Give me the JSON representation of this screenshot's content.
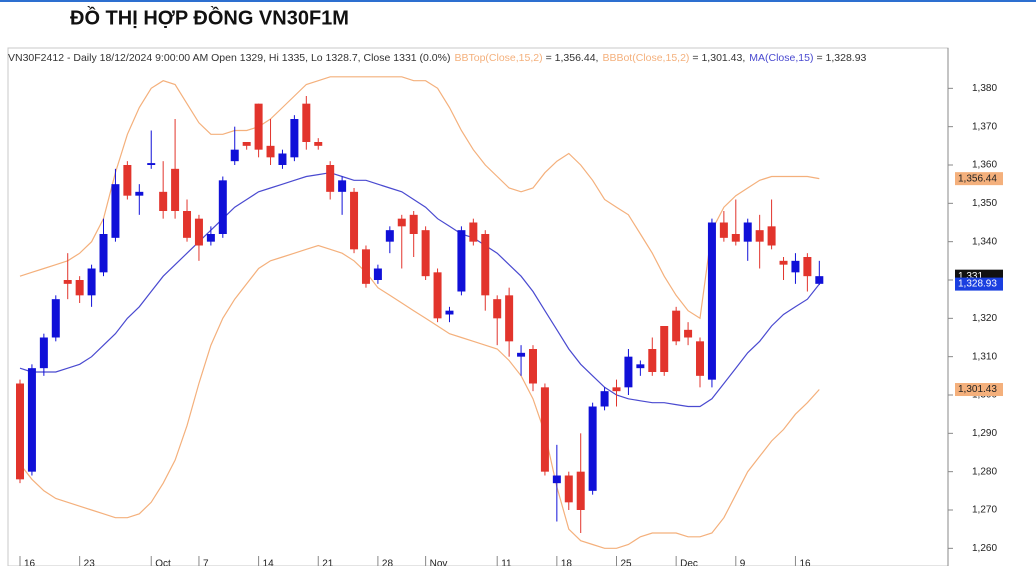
{
  "chart_data": {
    "type": "candlestick",
    "title": "ĐỒ THỊ HỢP ĐỒNG VN30F1M",
    "header": "VN30F2412 - Daily 18/12/2024 9:00:00 AM Open 1329, Hi 1335, Lo 1328.7, Close 1331 (0.0%)",
    "categories": [
      "16",
      null,
      null,
      null,
      null,
      "23",
      null,
      null,
      null,
      null,
      null,
      "Oct",
      null,
      null,
      null,
      "7",
      null,
      null,
      null,
      null,
      "14",
      null,
      null,
      null,
      null,
      "21",
      null,
      null,
      null,
      null,
      "28",
      null,
      null,
      null,
      "Nov",
      null,
      null,
      null,
      null,
      null,
      "11",
      null,
      null,
      null,
      null,
      "18",
      null,
      null,
      null,
      null,
      "25",
      null,
      null,
      null,
      null,
      "Dec",
      null,
      null,
      null,
      null,
      "9",
      null,
      null,
      null,
      null,
      "16",
      null,
      null
    ],
    "open": [
      1303,
      1280,
      1307,
      1315,
      1330,
      1330,
      1326,
      1332,
      1341,
      1360,
      1352,
      1360,
      1353,
      1359,
      1348,
      1346,
      1340,
      1342,
      1361,
      1366,
      1376,
      1365,
      1360,
      1362,
      1376,
      1366,
      1360,
      1353,
      1353,
      1338,
      1330,
      1340,
      1346,
      1347,
      1343,
      1332,
      1321,
      1327,
      1345,
      1342,
      1325,
      1326,
      1310,
      1312,
      1302,
      1277,
      1279,
      1280,
      1275,
      1297,
      1302,
      1302,
      1307,
      1312,
      1318,
      1322,
      1317,
      1314,
      1304,
      1345,
      1342,
      1340,
      1343,
      1344,
      1335,
      1332,
      1336,
      1329
    ],
    "high": [
      1304,
      1308,
      1316,
      1326,
      1337,
      1331,
      1334,
      1346,
      1359,
      1361,
      1355,
      1369,
      1361,
      1372,
      1351,
      1347,
      1344,
      1357,
      1370,
      1366,
      1376,
      1372,
      1364,
      1373,
      1378,
      1367,
      1361,
      1357,
      1354,
      1339,
      1334,
      1344,
      1347,
      1348,
      1344,
      1333,
      1323,
      1344,
      1346,
      1343,
      1326,
      1328,
      1313,
      1313,
      1303,
      1287,
      1280,
      1290,
      1298,
      1302,
      1304,
      1312,
      1309,
      1315,
      1318,
      1323,
      1319,
      1315,
      1346,
      1348,
      1351,
      1346,
      1347,
      1351,
      1336,
      1337,
      1337,
      1335
    ],
    "low": [
      1277,
      1279,
      1305,
      1314,
      1325,
      1324,
      1323,
      1331,
      1340,
      1351,
      1347,
      1359,
      1346,
      1346,
      1340,
      1335,
      1339,
      1341,
      1360,
      1364,
      1362,
      1360,
      1359,
      1361,
      1364,
      1364,
      1351,
      1347,
      1337,
      1328,
      1329,
      1337,
      1333,
      1336,
      1330,
      1319,
      1319,
      1326,
      1339,
      1322,
      1313,
      1310,
      1305,
      1301,
      1279,
      1267,
      1270,
      1264,
      1274,
      1296,
      1297,
      1300,
      1305,
      1305,
      1305,
      1313,
      1313,
      1302,
      1302,
      1340,
      1339,
      1335,
      1333,
      1338,
      1330,
      1329,
      1327,
      1328.7
    ],
    "close": [
      1278,
      1307,
      1315,
      1325,
      1329,
      1326,
      1333,
      1342,
      1355,
      1352,
      1353,
      1360.5,
      1348,
      1348,
      1341,
      1339,
      1342,
      1356,
      1364,
      1365,
      1364,
      1362,
      1363,
      1372,
      1366,
      1365,
      1353,
      1356,
      1338,
      1329,
      1333,
      1343,
      1344,
      1342,
      1331,
      1320,
      1322,
      1343,
      1340,
      1326,
      1320,
      1314,
      1311,
      1303,
      1280,
      1279,
      1272,
      1270,
      1297,
      1301,
      1301,
      1310,
      1308,
      1306,
      1306,
      1314,
      1315,
      1305,
      1345,
      1341,
      1340,
      1345,
      1340,
      1339,
      1334,
      1335,
      1331,
      1331
    ],
    "up_color": "#1010d8",
    "down_color": "#e2342c",
    "overlays": [
      {
        "name": "BBTop(Close,15,2)",
        "color": "#f4b07c",
        "legend_value": {
          "value": 1356.44,
          "label": "= 1,356.44,"
        },
        "values": [
          1331,
          1332,
          1333,
          1334,
          1335,
          1337,
          1340,
          1346,
          1358,
          1368,
          1375,
          1380,
          1382,
          1381,
          1376,
          1371,
          1368,
          1368,
          1369,
          1369,
          1370,
          1372,
          1375,
          1378,
          1381,
          1382,
          1383,
          1383,
          1383,
          1383,
          1383,
          1383,
          1383,
          1382,
          1382,
          1380,
          1375,
          1369,
          1364,
          1360,
          1357,
          1354,
          1353,
          1354,
          1358,
          1361,
          1363,
          1360,
          1356,
          1351,
          1349,
          1347,
          1342,
          1337,
          1331,
          1326,
          1322,
          1320,
          1343,
          1349,
          1352,
          1354,
          1356,
          1357,
          1357,
          1357,
          1357,
          1356.44
        ]
      },
      {
        "name": "BBBot(Close,15,2)",
        "color": "#f4b07c",
        "legend_value": {
          "value": 1301.43,
          "label": "= 1,301.43,"
        },
        "values": [
          1282,
          1278,
          1275,
          1273,
          1272,
          1271,
          1270,
          1269,
          1268,
          1268,
          1269,
          1272,
          1277,
          1283,
          1292,
          1303,
          1313,
          1320,
          1325,
          1329,
          1333,
          1335,
          1336,
          1337,
          1338,
          1339,
          1338,
          1337,
          1335,
          1332,
          1328,
          1326,
          1324,
          1322,
          1320,
          1318,
          1316,
          1315,
          1314,
          1313,
          1312,
          1309,
          1305,
          1299,
          1290,
          1276,
          1265,
          1262,
          1261,
          1260,
          1260,
          1261,
          1263,
          1264,
          1264,
          1264,
          1263,
          1263,
          1264,
          1268,
          1274,
          1280,
          1284,
          1288,
          1291,
          1295,
          1298,
          1301.43
        ]
      },
      {
        "name": "MA(Close,15)",
        "color": "#4a4ad0",
        "legend_value": {
          "value": 1328.93,
          "label": "= 1,328.93"
        },
        "values": [
          1307,
          1306,
          1306,
          1306,
          1307,
          1308,
          1310,
          1313,
          1316,
          1320,
          1323,
          1327,
          1331,
          1334,
          1337,
          1340,
          1343,
          1346,
          1349,
          1351,
          1353,
          1354,
          1355,
          1356,
          1357,
          1357.5,
          1358,
          1357,
          1356,
          1356,
          1355,
          1354,
          1353,
          1351,
          1349,
          1346,
          1344,
          1342,
          1341,
          1339,
          1337,
          1334,
          1331,
          1327,
          1322,
          1317,
          1312,
          1308,
          1305,
          1302,
          1300,
          1299,
          1298.5,
          1298,
          1298,
          1297.5,
          1297,
          1297,
          1299,
          1303,
          1307,
          1311,
          1314,
          1318,
          1321,
          1323,
          1325,
          1328.93
        ]
      }
    ],
    "price_tags": [
      {
        "value": 1356.44,
        "label": "1,356.44",
        "color": "#f4b07c",
        "text_color": "#222222"
      },
      {
        "value": 1331,
        "label": "1,331",
        "color": "#111111",
        "text_color": "#ffffff"
      },
      {
        "value": 1328.93,
        "label": "1,328.93",
        "color": "#1a3fe0",
        "text_color": "#ffffff"
      },
      {
        "value": 1301.43,
        "label": "1,301.43",
        "color": "#f4b07c",
        "text_color": "#222222"
      }
    ],
    "ylim": [
      1258,
      1390
    ],
    "yticks": [
      {
        "value": 1260,
        "label": "1,260"
      },
      {
        "value": 1270,
        "label": "1,270"
      },
      {
        "value": 1280,
        "label": "1,280"
      },
      {
        "value": 1290,
        "label": "1,290"
      },
      {
        "value": 1300,
        "label": "1,300"
      },
      {
        "value": 1310,
        "label": "1,310"
      },
      {
        "value": 1320,
        "label": "1,320"
      },
      {
        "value": 1330,
        "label": "1,330"
      },
      {
        "value": 1340,
        "label": "1,340"
      },
      {
        "value": 1350,
        "label": "1,350"
      },
      {
        "value": 1360,
        "label": "1,360"
      },
      {
        "value": 1370,
        "label": "1,370"
      },
      {
        "value": 1380,
        "label": "1,380"
      }
    ]
  }
}
